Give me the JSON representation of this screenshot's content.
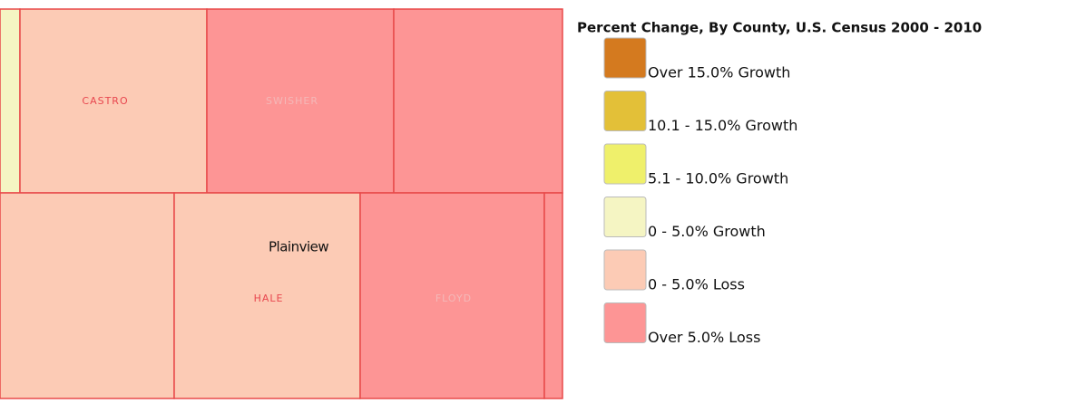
{
  "map": {
    "counties": [
      {
        "name": "CASTRO"
      },
      {
        "name": "SWISHER"
      },
      {
        "name": "HALE"
      },
      {
        "name": "FLOYD"
      }
    ],
    "cities": [
      {
        "name": "Plainview"
      }
    ]
  },
  "legend": {
    "title": "Percent Change, By County, U.S. Census 2000 - 2010",
    "items": [
      {
        "label": "Over 15.0% Growth",
        "color": "#d47a1f"
      },
      {
        "label": "10.1 - 15.0% Growth",
        "color": "#e3c038"
      },
      {
        "label": "5.1 - 10.0% Growth",
        "color": "#eff06b"
      },
      {
        "label": "0 - 5.0% Growth",
        "color": "#f5f5c3"
      },
      {
        "label": "0 - 5.0% Loss",
        "color": "#fccbb5"
      },
      {
        "label": "Over 5.0% Loss",
        "color": "#fd9595"
      }
    ]
  }
}
